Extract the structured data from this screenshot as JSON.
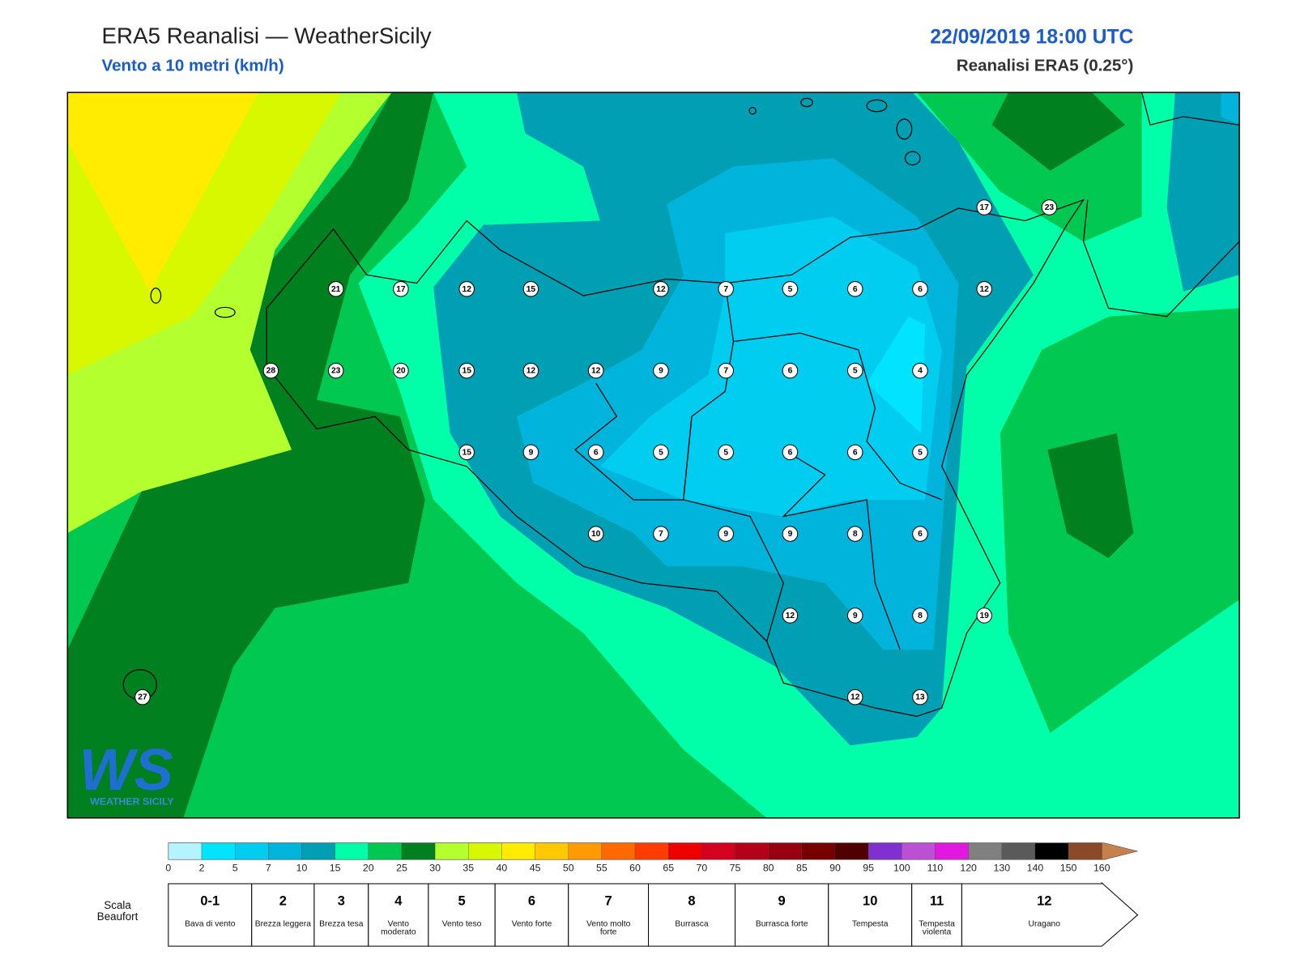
{
  "header": {
    "title": "ERA5 Reanalisi — WeatherSicily",
    "subtitle": "Vento a 10 metri (km/h)",
    "date": "22/09/2019 18:00 UTC",
    "source": "Reanalisi ERA5 (0.25°)"
  },
  "logo": {
    "mark": "WS",
    "text": "WEATHER SICILY"
  },
  "stations": [
    21,
    17,
    12,
    15,
    12,
    7,
    5,
    6,
    6,
    12,
    28,
    23,
    20,
    15,
    12,
    12,
    9,
    7,
    6,
    5,
    4,
    15,
    9,
    6,
    5,
    5,
    6,
    6,
    5,
    10,
    7,
    9,
    9,
    8,
    6,
    12,
    9,
    8,
    19,
    12,
    13,
    17,
    23,
    27
  ],
  "legend": {
    "ticks": [
      0,
      2,
      5,
      7,
      10,
      15,
      20,
      25,
      30,
      35,
      40,
      45,
      50,
      55,
      60,
      65,
      70,
      75,
      80,
      85,
      90,
      95,
      100,
      110,
      120,
      130,
      140,
      150,
      160
    ],
    "colors": [
      "#b4f4ff",
      "#00e4ff",
      "#00cdf0",
      "#00b4dc",
      "#009fb4",
      "#00ffa8",
      "#00c850",
      "#00801e",
      "#b4ff2e",
      "#d8f800",
      "#ffec00",
      "#ffc800",
      "#ff9a00",
      "#ff6a00",
      "#ff3c00",
      "#ee0000",
      "#d40020",
      "#b40018",
      "#960010",
      "#760000",
      "#500000",
      "#8030d0",
      "#bc50d4",
      "#e018e0",
      "#808080",
      "#5a5a5a",
      "#000000",
      "#8a4a28"
    ]
  },
  "beaufort": {
    "label": "Scala Beaufort",
    "levels": [
      {
        "force": "0-1",
        "name": "Bava di vento"
      },
      {
        "force": 2,
        "name": "Brezza leggera"
      },
      {
        "force": 3,
        "name": "Brezza tesa"
      },
      {
        "force": 4,
        "name": "Vento moderato"
      },
      {
        "force": 5,
        "name": "Vento teso"
      },
      {
        "force": 6,
        "name": "Vento forte"
      },
      {
        "force": 7,
        "name": "Vento molto forte"
      },
      {
        "force": 8,
        "name": "Burrasca"
      },
      {
        "force": 9,
        "name": "Burrasca forte"
      },
      {
        "force": 10,
        "name": "Tempesta"
      },
      {
        "force": 11,
        "name": "Tempesta violenta"
      },
      {
        "force": 12,
        "name": "Uragano"
      }
    ]
  }
}
